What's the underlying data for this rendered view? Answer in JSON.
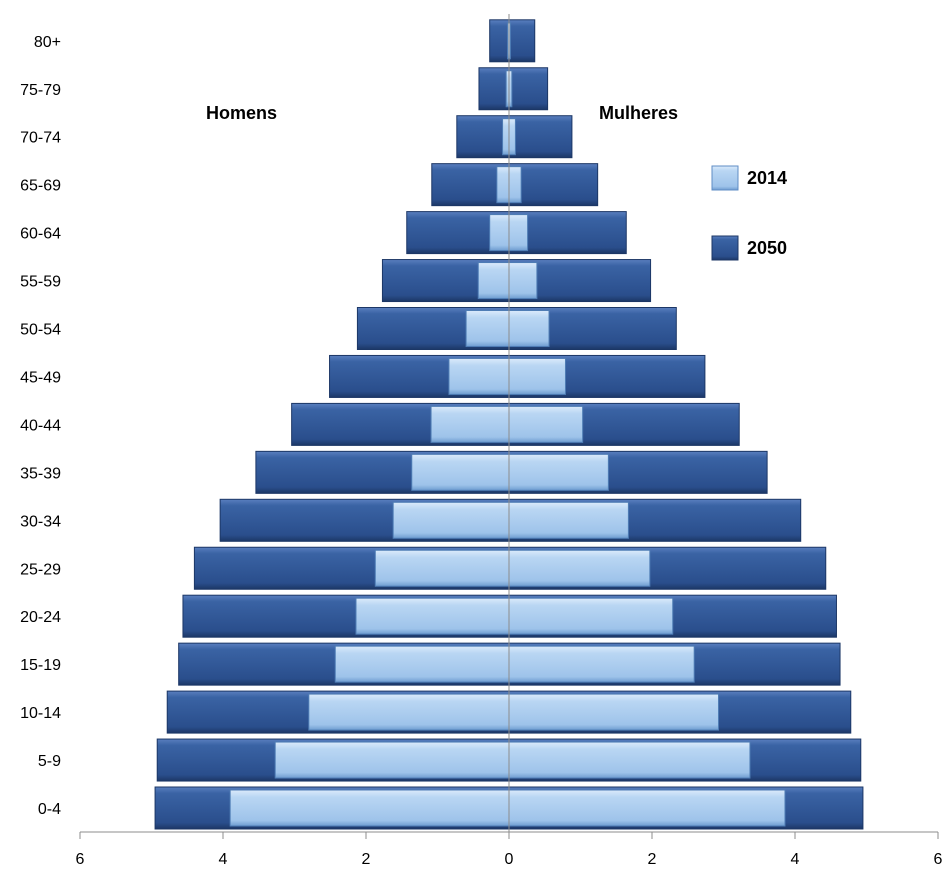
{
  "chart_data": {
    "type": "bar",
    "orientation": "horizontal",
    "subtype": "population-pyramid",
    "categories": [
      "0-4",
      "5-9",
      "10-14",
      "15-19",
      "20-24",
      "25-29",
      "30-34",
      "35-39",
      "40-44",
      "45-49",
      "50-54",
      "55-59",
      "60-64",
      "65-69",
      "70-74",
      "75-79",
      "80+"
    ],
    "side_labels": {
      "left": "Homens",
      "right": "Mulheres"
    },
    "series": [
      {
        "name": "2050",
        "color": "#2e5593",
        "men": [
          4.95,
          4.92,
          4.78,
          4.62,
          4.56,
          4.4,
          4.04,
          3.54,
          3.04,
          2.51,
          2.12,
          1.77,
          1.43,
          1.08,
          0.73,
          0.42,
          0.27
        ],
        "women": [
          4.95,
          4.92,
          4.78,
          4.63,
          4.58,
          4.43,
          4.08,
          3.61,
          3.22,
          2.74,
          2.34,
          1.98,
          1.64,
          1.24,
          0.88,
          0.54,
          0.36
        ]
      },
      {
        "name": "2014",
        "color": "#a9cbee",
        "men": [
          3.9,
          3.27,
          2.8,
          2.43,
          2.14,
          1.87,
          1.62,
          1.36,
          1.09,
          0.84,
          0.6,
          0.43,
          0.27,
          0.17,
          0.09,
          0.04,
          0.02
        ],
        "women": [
          3.86,
          3.37,
          2.93,
          2.59,
          2.29,
          1.97,
          1.67,
          1.39,
          1.03,
          0.79,
          0.56,
          0.39,
          0.26,
          0.17,
          0.09,
          0.04,
          0.02
        ]
      }
    ],
    "x_axis": {
      "range": [
        -6,
        6
      ],
      "ticks": [
        -6,
        -4,
        -2,
        0,
        2,
        4,
        6
      ],
      "tick_labels": [
        "6",
        "4",
        "2",
        "0",
        "2",
        "4",
        "6"
      ]
    },
    "grid": false,
    "legend": {
      "placement": "right",
      "entries": [
        "2014",
        "2050"
      ]
    }
  }
}
